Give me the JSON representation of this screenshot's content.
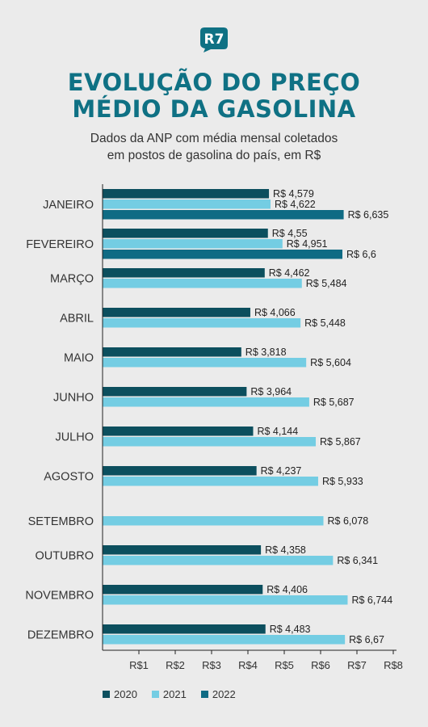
{
  "header": {
    "logo_text": "R7",
    "title": "EVOLUÇÃO DO PREÇO\nMÉDIO DA GASOLINA",
    "subtitle": "Dados da ANP com média mensal coletados\nem postos de gasolina do país, em R$"
  },
  "colors": {
    "brand": "#0f7184",
    "s2020": "#0c4f5e",
    "s2021": "#74cde3",
    "s2022": "#0f6b84",
    "axis": "#222222"
  },
  "chart_data": {
    "type": "bar",
    "orientation": "horizontal",
    "title": "EVOLUÇÃO DO PREÇO MÉDIO DA GASOLINA",
    "subtitle": "Dados da ANP com média mensal coletados em postos de gasolina do país, em R$",
    "categories": [
      "JANEIRO",
      "FEVEREIRO",
      "MARÇO",
      "ABRIL",
      "MAIO",
      "JUNHO",
      "JULHO",
      "AGOSTO",
      "SETEMBRO",
      "OUTUBRO",
      "NOVEMBRO",
      "DEZEMBRO"
    ],
    "series": [
      {
        "name": "2020",
        "values": [
          4.579,
          4.55,
          4.462,
          4.066,
          3.818,
          3.964,
          4.144,
          4.237,
          null,
          4.358,
          4.406,
          4.483
        ],
        "labels": [
          "R$ 4,579",
          "R$ 4,55",
          "R$ 4,462",
          "R$ 4,066",
          "R$ 3,818",
          "R$ 3,964",
          "R$ 4,144",
          "R$ 4,237",
          null,
          "R$ 4,358",
          "R$ 4,406",
          "R$ 4,483"
        ]
      },
      {
        "name": "2021",
        "values": [
          4.622,
          4.951,
          5.484,
          5.448,
          5.604,
          5.687,
          5.867,
          5.933,
          6.078,
          6.341,
          6.744,
          6.67
        ],
        "labels": [
          "R$ 4,622",
          "R$ 4,951",
          "R$ 5,484",
          "R$ 5,448",
          "R$ 5,604",
          "R$ 5,687",
          "R$ 5,867",
          "R$ 5,933",
          "R$ 6,078",
          "R$ 6,341",
          "R$ 6,744",
          "R$ 6,67"
        ]
      },
      {
        "name": "2022",
        "values": [
          6.635,
          6.6,
          null,
          null,
          null,
          null,
          null,
          null,
          null,
          null,
          null,
          null
        ],
        "labels": [
          "R$ 6,635",
          "R$ 6,6",
          null,
          null,
          null,
          null,
          null,
          null,
          null,
          null,
          null,
          null
        ]
      }
    ],
    "x_ticks": [
      1,
      2,
      3,
      4,
      5,
      6,
      7,
      8
    ],
    "x_tick_labels": [
      "R$1",
      "R$2",
      "R$3",
      "R$4",
      "R$5",
      "R$6",
      "R$7",
      "R$8"
    ],
    "xlim": [
      0,
      8
    ],
    "grid": false,
    "legend_position": "bottom-left"
  }
}
